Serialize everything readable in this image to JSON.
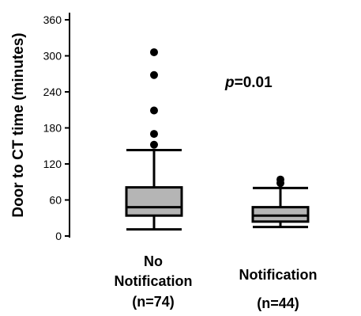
{
  "chart_data": {
    "type": "boxplot",
    "ylabel": "Door to CT time (minutes)",
    "ylim": [
      0,
      360
    ],
    "yticks": [
      0,
      60,
      120,
      180,
      240,
      300,
      360
    ],
    "grid": false,
    "categories": [
      {
        "lines": [
          "No",
          "Notification",
          "(n=74)"
        ]
      },
      {
        "lines": [
          "Notification",
          "(n=44)"
        ]
      }
    ],
    "boxes": [
      {
        "whisker_low": 11,
        "q1": 34,
        "median": 48,
        "q3": 81,
        "whisker_high": 143,
        "outliers": [
          152,
          170,
          209,
          268,
          306
        ]
      },
      {
        "whisker_low": 15,
        "q1": 24,
        "median": 34,
        "q3": 48,
        "whisker_high": 80,
        "outliers": [
          88,
          94
        ]
      }
    ],
    "annotation": {
      "italic": "p",
      "text": "=0.01"
    },
    "colors": {
      "box_fill": "#b5b5b5",
      "stroke": "#000000"
    }
  }
}
